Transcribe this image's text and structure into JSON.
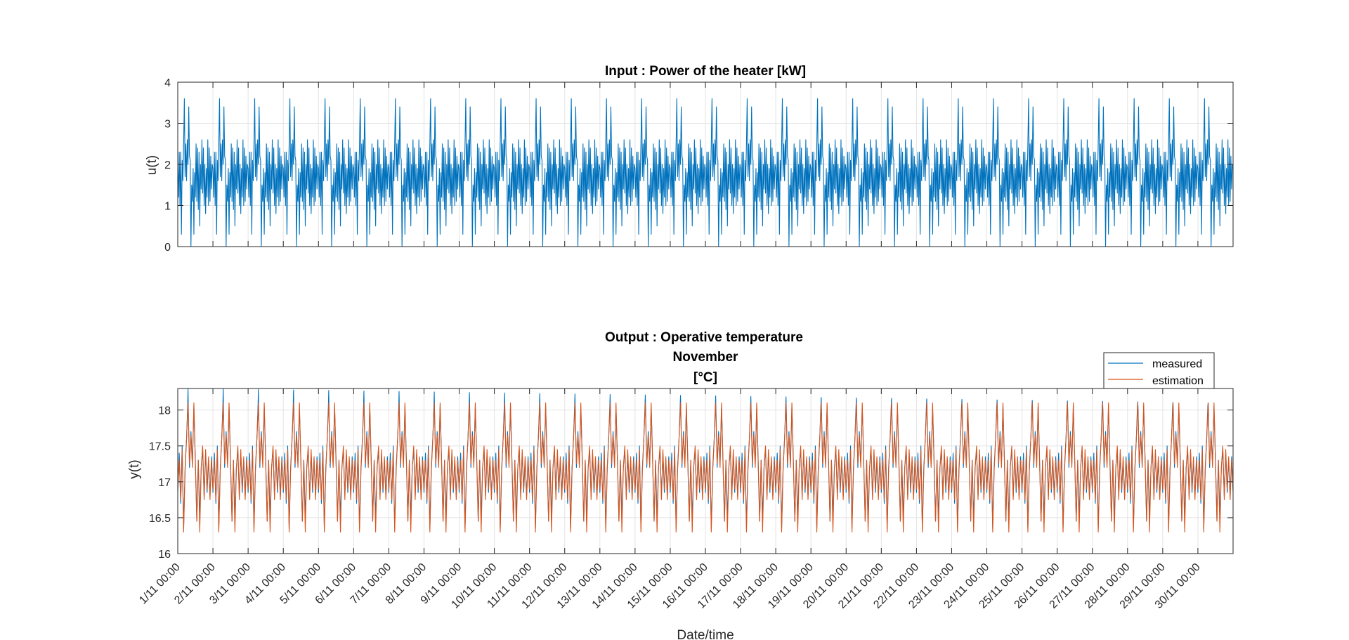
{
  "chart_data": [
    {
      "type": "line",
      "title": "Input : Power of the heater [kW]",
      "xlabel": "",
      "ylabel": "u(t)",
      "ylim": [
        0,
        4
      ],
      "yticks": [
        0,
        1,
        2,
        3,
        4
      ],
      "xlim": [
        "1/11 00:00",
        "30/11 24:00"
      ],
      "grid": true,
      "series": [
        {
          "color": "#0072BD",
          "daily_profile_hours": [
            0,
            0.5,
            1,
            1.5,
            2,
            2.5,
            3,
            3.5,
            4,
            4.5,
            5,
            5.5,
            6,
            6.5,
            7,
            7.5,
            8,
            8.5,
            9,
            9.5,
            10,
            10.5,
            11,
            11.5,
            12,
            12.5,
            13,
            13.5,
            14,
            14.5,
            15,
            15.5,
            16,
            16.5,
            17,
            17.5,
            18,
            18.5,
            19,
            19.5,
            20,
            20.5,
            21,
            21.5,
            22,
            22.5,
            23,
            23.5,
            24
          ],
          "daily_profile_values": [
            1.9,
            1.2,
            2.3,
            1.0,
            2.3,
            0.3,
            2.1,
            1.6,
            2.5,
            3.6,
            1.7,
            2.5,
            1.6,
            2.6,
            2.0,
            3.4,
            2.2,
            2.1,
            0.0,
            1.5,
            1.1,
            1.9,
            0.3,
            1.8,
            1.2,
            2.5,
            1.1,
            2.4,
            0.9,
            2.3,
            0.5,
            2.0,
            1.4,
            2.6,
            1.3,
            2.4,
            1.0,
            2.0,
            0.8,
            1.9,
            1.2,
            2.6,
            1.0,
            2.4,
            1.1,
            2.2,
            1.4,
            2.0,
            1.9
          ]
        }
      ]
    },
    {
      "type": "line",
      "title": [
        "Output :  Operative temperature",
        "November",
        "[°C]"
      ],
      "xlabel": "Date/time",
      "ylabel": "y(t)",
      "ylim": [
        16,
        18.3
      ],
      "yticks": [
        16,
        16.5,
        17,
        17.5,
        18
      ],
      "ytick_labels": [
        "16",
        "16.5",
        "17",
        "17.5",
        "18"
      ],
      "xlim": [
        "1/11 00:00",
        "30/11 24:00"
      ],
      "grid": true,
      "legend_position": "top-right",
      "xtick_labels": [
        "1/11 00:00",
        "2/11 00:00",
        "3/11 00:00",
        "4/11 00:00",
        "5/11 00:00",
        "6/11 00:00",
        "7/11 00:00",
        "8/11 00:00",
        "9/11 00:00",
        "10/11 00:00",
        "11/11 00:00",
        "12/11 00:00",
        "13/11 00:00",
        "14/11 00:00",
        "15/11 00:00",
        "16/11 00:00",
        "17/11 00:00",
        "18/11 00:00",
        "19/11 00:00",
        "20/11 00:00",
        "21/11 00:00",
        "22/11 00:00",
        "23/11 00:00",
        "24/11 00:00",
        "25/11 00:00",
        "26/11 00:00",
        "27/11 00:00",
        "28/11 00:00",
        "29/11 00:00",
        "30/11 00:00"
      ],
      "series": [
        {
          "name": "measured",
          "color": "#0072BD",
          "daily_profile_hours": [
            0,
            1,
            2,
            3,
            4,
            5,
            6,
            7,
            8,
            9,
            10,
            11,
            12,
            13,
            14,
            15,
            16,
            17,
            18,
            19,
            20,
            21,
            22,
            23,
            24
          ],
          "daily_profile_values": [
            16.85,
            17.4,
            16.7,
            17.5,
            16.35,
            17.2,
            17.6,
            18.2,
            17.2,
            17.7,
            17.25,
            18.05,
            17.3,
            16.45,
            17.3,
            16.5,
            17.2,
            17.45,
            16.8,
            17.4,
            16.85,
            17.3,
            16.8,
            17.35,
            16.85
          ],
          "day1_peak": 18.3,
          "day30_peak": 18.1
        },
        {
          "name": "estimation",
          "color": "#D95319",
          "daily_profile_hours": [
            0,
            1,
            2,
            3,
            4,
            5,
            6,
            7,
            8,
            9,
            10,
            11,
            12,
            13,
            14,
            15,
            16,
            17,
            18,
            19,
            20,
            21,
            22,
            23,
            24
          ],
          "daily_profile_values": [
            16.9,
            17.3,
            16.75,
            17.45,
            16.3,
            17.15,
            17.6,
            18.1,
            17.25,
            17.65,
            17.2,
            18.1,
            17.25,
            16.45,
            17.3,
            16.3,
            17.2,
            17.5,
            16.75,
            17.45,
            16.9,
            17.35,
            16.75,
            17.3,
            16.9
          ]
        }
      ]
    }
  ]
}
